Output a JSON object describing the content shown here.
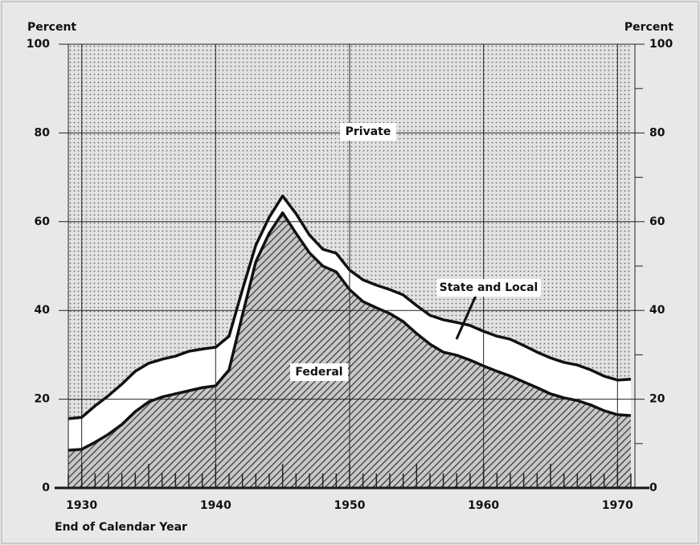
{
  "chart_data": {
    "type": "stacked_area",
    "y_label": "Percent",
    "y2_label": "Percent",
    "x_label": "End of Calendar Year",
    "x": [
      1929,
      1930,
      1931,
      1932,
      1933,
      1934,
      1935,
      1936,
      1937,
      1938,
      1939,
      1940,
      1941,
      1942,
      1943,
      1944,
      1945,
      1946,
      1947,
      1948,
      1949,
      1950,
      1951,
      1952,
      1953,
      1954,
      1955,
      1956,
      1957,
      1958,
      1959,
      1960,
      1961,
      1962,
      1963,
      1964,
      1965,
      1966,
      1967,
      1968,
      1969,
      1970,
      1971
    ],
    "series": [
      {
        "name": "Federal",
        "color": "#555555",
        "values": [
          8.5,
          8.7,
          10.3,
          12.1,
          14.3,
          17.2,
          19.4,
          20.5,
          21.2,
          21.9,
          22.6,
          23.0,
          26.6,
          39.0,
          51.0,
          57.4,
          62.0,
          57.4,
          53.0,
          50.0,
          48.7,
          44.7,
          42.0,
          40.6,
          39.3,
          37.5,
          34.8,
          32.4,
          30.6,
          29.9,
          28.8,
          27.5,
          26.3,
          25.2,
          23.9,
          22.6,
          21.2,
          20.3,
          19.7,
          18.7,
          17.4,
          16.5,
          16.3
        ]
      },
      {
        "name": "State and Local",
        "color": "#ffffff",
        "values": [
          7.1,
          7.2,
          8.2,
          8.7,
          9.1,
          9.1,
          8.7,
          8.5,
          8.5,
          8.9,
          8.7,
          8.7,
          7.6,
          5.7,
          3.7,
          3.6,
          3.8,
          4.4,
          4.0,
          3.8,
          4.2,
          4.4,
          4.9,
          5.1,
          5.4,
          6.0,
          6.3,
          6.5,
          7.3,
          7.4,
          7.8,
          7.8,
          7.9,
          8.3,
          8.2,
          8.0,
          8.1,
          8.0,
          8.0,
          7.9,
          7.8,
          7.8,
          8.2
        ]
      },
      {
        "name": "Private",
        "color": "#bbbbbb",
        "values": [
          84.4,
          84.1,
          81.5,
          79.2,
          76.6,
          73.7,
          71.9,
          71.0,
          70.3,
          69.2,
          68.7,
          68.3,
          65.8,
          55.3,
          45.3,
          39.0,
          34.2,
          38.2,
          43.0,
          46.2,
          47.1,
          50.9,
          53.1,
          54.3,
          55.3,
          56.5,
          58.9,
          61.1,
          62.1,
          62.7,
          63.4,
          64.7,
          65.8,
          66.5,
          67.9,
          69.4,
          70.7,
          71.7,
          72.3,
          73.4,
          74.8,
          75.7,
          75.5
        ]
      }
    ],
    "xlim": [
      1929,
      1971.3
    ],
    "xticks": [
      1930,
      1940,
      1950,
      1960,
      1970
    ],
    "ylim": [
      0,
      100
    ],
    "yticks": [
      0,
      20,
      40,
      60,
      80,
      100
    ],
    "y2lim": [
      0,
      100
    ],
    "y2ticks": [
      0,
      20,
      40,
      60,
      80,
      100
    ],
    "grid": true
  }
}
